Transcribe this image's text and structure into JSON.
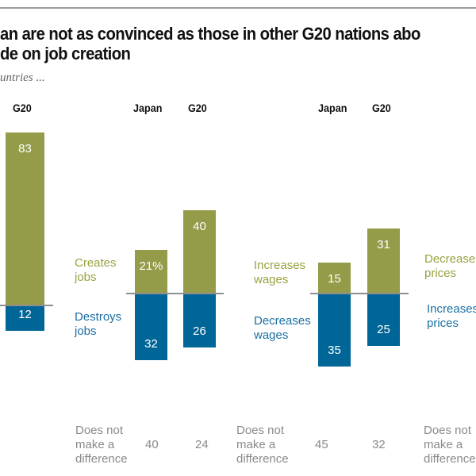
{
  "title_lines": [
    "an are not as convinced as those in other G20 nations abo",
    "de on job creation"
  ],
  "subtitle": "untries ...",
  "colors": {
    "positive": "#949c49",
    "negative": "#006597",
    "positive_text": "#9aa23f",
    "negative_text": "#1a6fa3",
    "neutral_text": "#8a8a8a"
  },
  "chart_data": {
    "type": "bar",
    "subtype": "diverging",
    "unit": "%",
    "panels": [
      {
        "categories": [
          "G20"
        ],
        "positive_label": "",
        "negative_label": "",
        "neutral_label": "",
        "positive": [
          83
        ],
        "negative": [
          12
        ],
        "neutral": [
          null
        ]
      },
      {
        "categories": [
          "Japan",
          "G20"
        ],
        "positive_label": "Creates jobs",
        "negative_label": "Destroys jobs",
        "neutral_label": "Does not make a difference",
        "positive": [
          21,
          40
        ],
        "negative": [
          32,
          26
        ],
        "neutral": [
          40,
          24
        ],
        "positive_display": [
          "21%",
          "40"
        ]
      },
      {
        "categories": [
          "Japan",
          "G20"
        ],
        "positive_label": "Increases wages",
        "negative_label": "Decreases wages",
        "neutral_label": "Does not make a difference",
        "positive": [
          15,
          31
        ],
        "negative": [
          35,
          25
        ],
        "neutral": [
          45,
          32
        ]
      },
      {
        "categories": [],
        "positive_label": "Decrease prices",
        "negative_label": "Increases prices",
        "neutral_label": "Does not make a difference",
        "positive": [],
        "negative": [],
        "neutral": []
      }
    ]
  }
}
